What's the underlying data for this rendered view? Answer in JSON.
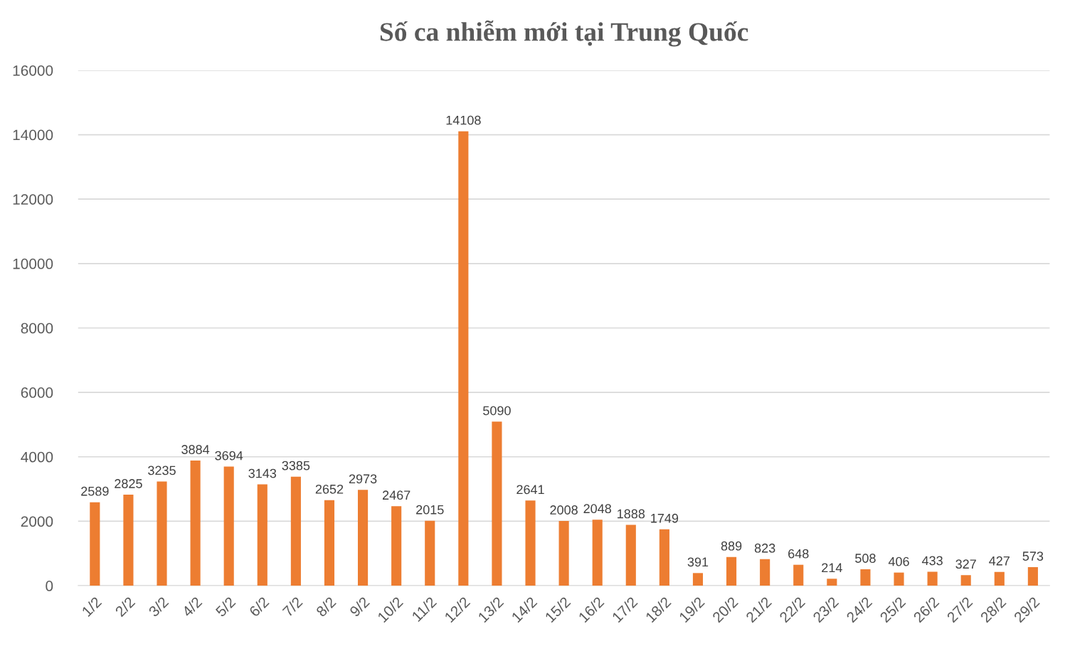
{
  "chart_data": {
    "type": "bar",
    "title": "Số ca nhiễm mới tại Trung Quốc",
    "categories": [
      "1/2",
      "2/2",
      "3/2",
      "4/2",
      "5/2",
      "6/2",
      "7/2",
      "8/2",
      "9/2",
      "10/2",
      "11/2",
      "12/2",
      "13/2",
      "14/2",
      "15/2",
      "16/2",
      "17/2",
      "18/2",
      "19/2",
      "20/2",
      "21/2",
      "22/2",
      "23/2",
      "24/2",
      "25/2",
      "26/2",
      "27/2",
      "28/2",
      "29/2"
    ],
    "values": [
      2589,
      2825,
      3235,
      3884,
      3694,
      3143,
      3385,
      2652,
      2973,
      2467,
      2015,
      14108,
      5090,
      2641,
      2008,
      2048,
      1888,
      1749,
      391,
      889,
      823,
      648,
      214,
      508,
      406,
      433,
      327,
      427,
      573
    ],
    "color": "#ed7d31",
    "ylim": [
      0,
      16000
    ],
    "yticks": [
      0,
      2000,
      4000,
      6000,
      8000,
      10000,
      12000,
      14000,
      16000
    ],
    "grid": "y",
    "data_labels": true,
    "legend": false
  }
}
